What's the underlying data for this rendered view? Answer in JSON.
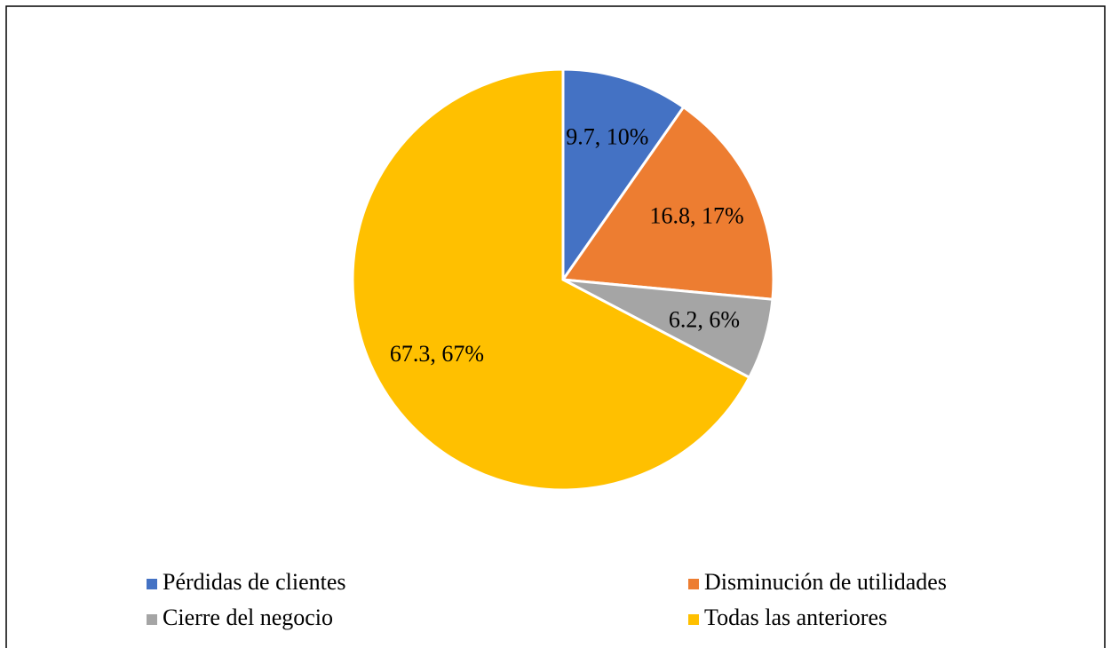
{
  "chart_data": {
    "type": "pie",
    "categories": [
      "Pérdidas de clientes",
      "Disminución de utilidades",
      "Cierre del negocio",
      "Todas las anteriores"
    ],
    "values": [
      9.7,
      16.8,
      6.2,
      67.3
    ],
    "value_labels": [
      "9.7, 10%",
      "16.8, 17%",
      "6.2, 6%",
      "67.3, 67%"
    ],
    "colors": [
      "#4472c4",
      "#ed7d31",
      "#a5a5a5",
      "#ffc000"
    ]
  }
}
